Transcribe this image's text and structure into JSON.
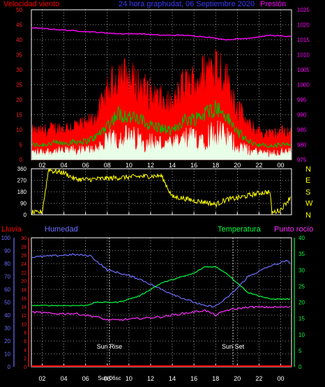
{
  "header": {
    "left_label": "Velocidad viento",
    "title": "24 hora graphudat, 06 Septiembre 2020",
    "right_label": "Presión"
  },
  "colors": {
    "wind_gust": "#ff0000",
    "wind_avg": "#00c000",
    "wind_low": "#e8ffe8",
    "pressure": "#ff00ff",
    "direction": "#ffff00",
    "rain": "#ff0000",
    "humidity": "#6f6fff",
    "temperature": "#00ff40",
    "dewpoint": "#ff33ff",
    "grid": "#ffffff",
    "frame": "#ffffff"
  },
  "x_tick_labels": [
    "02",
    "04",
    "06",
    "08",
    "10",
    "12",
    "14",
    "16",
    "18",
    "20",
    "22",
    "00"
  ],
  "chart_data": [
    {
      "type": "line",
      "panel": "wind",
      "x_ticks": [
        "02",
        "04",
        "06",
        "08",
        "10",
        "12",
        "14",
        "16",
        "18",
        "20",
        "22",
        "00"
      ],
      "y_left_ticks": [
        "0",
        "5",
        "10",
        "15",
        "20",
        "25",
        "30",
        "35",
        "40",
        "45",
        "50"
      ],
      "y_right_ticks": [
        "975",
        "980",
        "985",
        "990",
        "995",
        "1000",
        "1005",
        "1010",
        "1015",
        "1020",
        "1025"
      ],
      "ylim_left": [
        0,
        50
      ],
      "ylim_right": [
        975,
        1025
      ],
      "series": [
        {
          "name": "Velocidad viento",
          "axis": "left",
          "x": [
            0,
            1,
            2,
            3,
            4,
            5,
            6,
            7,
            8,
            9,
            10,
            11,
            12,
            13,
            14,
            15,
            16,
            17,
            18,
            19,
            20,
            21,
            22,
            23,
            24
          ],
          "values": [
            9,
            9,
            10,
            10,
            11,
            11,
            14,
            21,
            28,
            26,
            24,
            21,
            19,
            17,
            24,
            25,
            28,
            32,
            26,
            17,
            11,
            9,
            8,
            9,
            9
          ]
        },
        {
          "name": "Presión",
          "axis": "right",
          "x": [
            0,
            2,
            4,
            6,
            8,
            10,
            12,
            14,
            16,
            18,
            20,
            22,
            24
          ],
          "values": [
            1019,
            1018.5,
            1018,
            1017.5,
            1017,
            1017,
            1016.5,
            1016.5,
            1016,
            1015,
            1015.5,
            1016.5,
            1016
          ]
        }
      ]
    },
    {
      "type": "line",
      "panel": "wind_direction",
      "x_ticks": [
        "02",
        "04",
        "06",
        "08",
        "10",
        "12",
        "14",
        "16",
        "18",
        "20",
        "22",
        "00"
      ],
      "y_left_ticks": [
        "0",
        "90",
        "180",
        "270",
        "360"
      ],
      "y_right_labels": [
        "N",
        "W",
        "S",
        "E",
        "N"
      ],
      "ylim": [
        0,
        360
      ],
      "series": [
        {
          "name": "direction",
          "x": [
            0,
            0.5,
            1,
            1.6,
            2,
            3,
            4,
            5,
            6,
            8,
            10,
            12,
            13,
            14,
            15,
            16,
            17,
            18,
            19,
            20,
            21,
            22,
            22.2,
            23,
            24
          ],
          "values": [
            20,
            15,
            25,
            360,
            340,
            330,
            280,
            275,
            280,
            290,
            300,
            305,
            140,
            130,
            110,
            100,
            80,
            120,
            130,
            150,
            170,
            180,
            15,
            40,
            150
          ]
        }
      ]
    },
    {
      "type": "line",
      "panel": "humidity_temperature",
      "x_ticks": [
        "02",
        "04",
        "06",
        "08",
        "10",
        "12",
        "14",
        "16",
        "18",
        "20",
        "22",
        "00"
      ],
      "labels": {
        "lluvia": "Lluvia",
        "humedad": "Humedad",
        "temperatura": "Temperatura",
        "punto_rocio": "Punto rocío"
      },
      "annotations": [
        "Sun Rise",
        "Sun Set",
        "Sun 06sc"
      ],
      "y_humidity_ticks": [
        "0",
        "10",
        "20",
        "30",
        "40",
        "50",
        "60",
        "70",
        "80",
        "90",
        "100"
      ],
      "y_rain_ticks": [
        "0",
        "2",
        "4",
        "6",
        "8",
        "10",
        "12",
        "14",
        "16",
        "18",
        "20",
        "22",
        "24",
        "26",
        "28",
        "30"
      ],
      "y_temp_ticks": [
        "0",
        "5",
        "10",
        "15",
        "20",
        "25",
        "30",
        "35",
        "40"
      ],
      "ylim_humidity": [
        0,
        100
      ],
      "ylim_rain": [
        0,
        30
      ],
      "ylim_temp": [
        0,
        40
      ],
      "series": [
        {
          "name": "Humedad",
          "axis": "humidity",
          "x": [
            0,
            2,
            4,
            5.5,
            6,
            7,
            8,
            10,
            12,
            14,
            16,
            17,
            18,
            19,
            20,
            22,
            23.5,
            24
          ],
          "values": [
            85,
            86,
            87,
            86,
            82,
            75,
            73,
            68,
            60,
            53,
            47,
            47,
            53,
            61,
            70,
            78,
            82,
            80
          ]
        },
        {
          "name": "Temperatura",
          "axis": "temp",
          "x": [
            0,
            2,
            4,
            5,
            6,
            7,
            8,
            10,
            12,
            14,
            15,
            16,
            17,
            18,
            19,
            20,
            22,
            24
          ],
          "values": [
            19,
            19,
            19,
            19,
            20,
            20,
            20,
            22,
            26,
            28,
            29,
            31,
            31,
            29,
            26,
            23,
            21,
            21
          ]
        },
        {
          "name": "Punto rocío",
          "axis": "temp",
          "x": [
            0,
            2,
            4,
            6,
            7,
            8,
            10,
            12,
            14,
            16,
            17,
            18,
            19,
            20,
            22,
            24
          ],
          "values": [
            17,
            16.5,
            16.5,
            15.5,
            14.5,
            14.5,
            15,
            15.5,
            16.5,
            17.5,
            16,
            17.5,
            18,
            18.5,
            18.5,
            18.5
          ]
        },
        {
          "name": "Lluvia",
          "axis": "rain",
          "x": [
            0,
            24
          ],
          "values": [
            0,
            0
          ]
        }
      ]
    }
  ]
}
